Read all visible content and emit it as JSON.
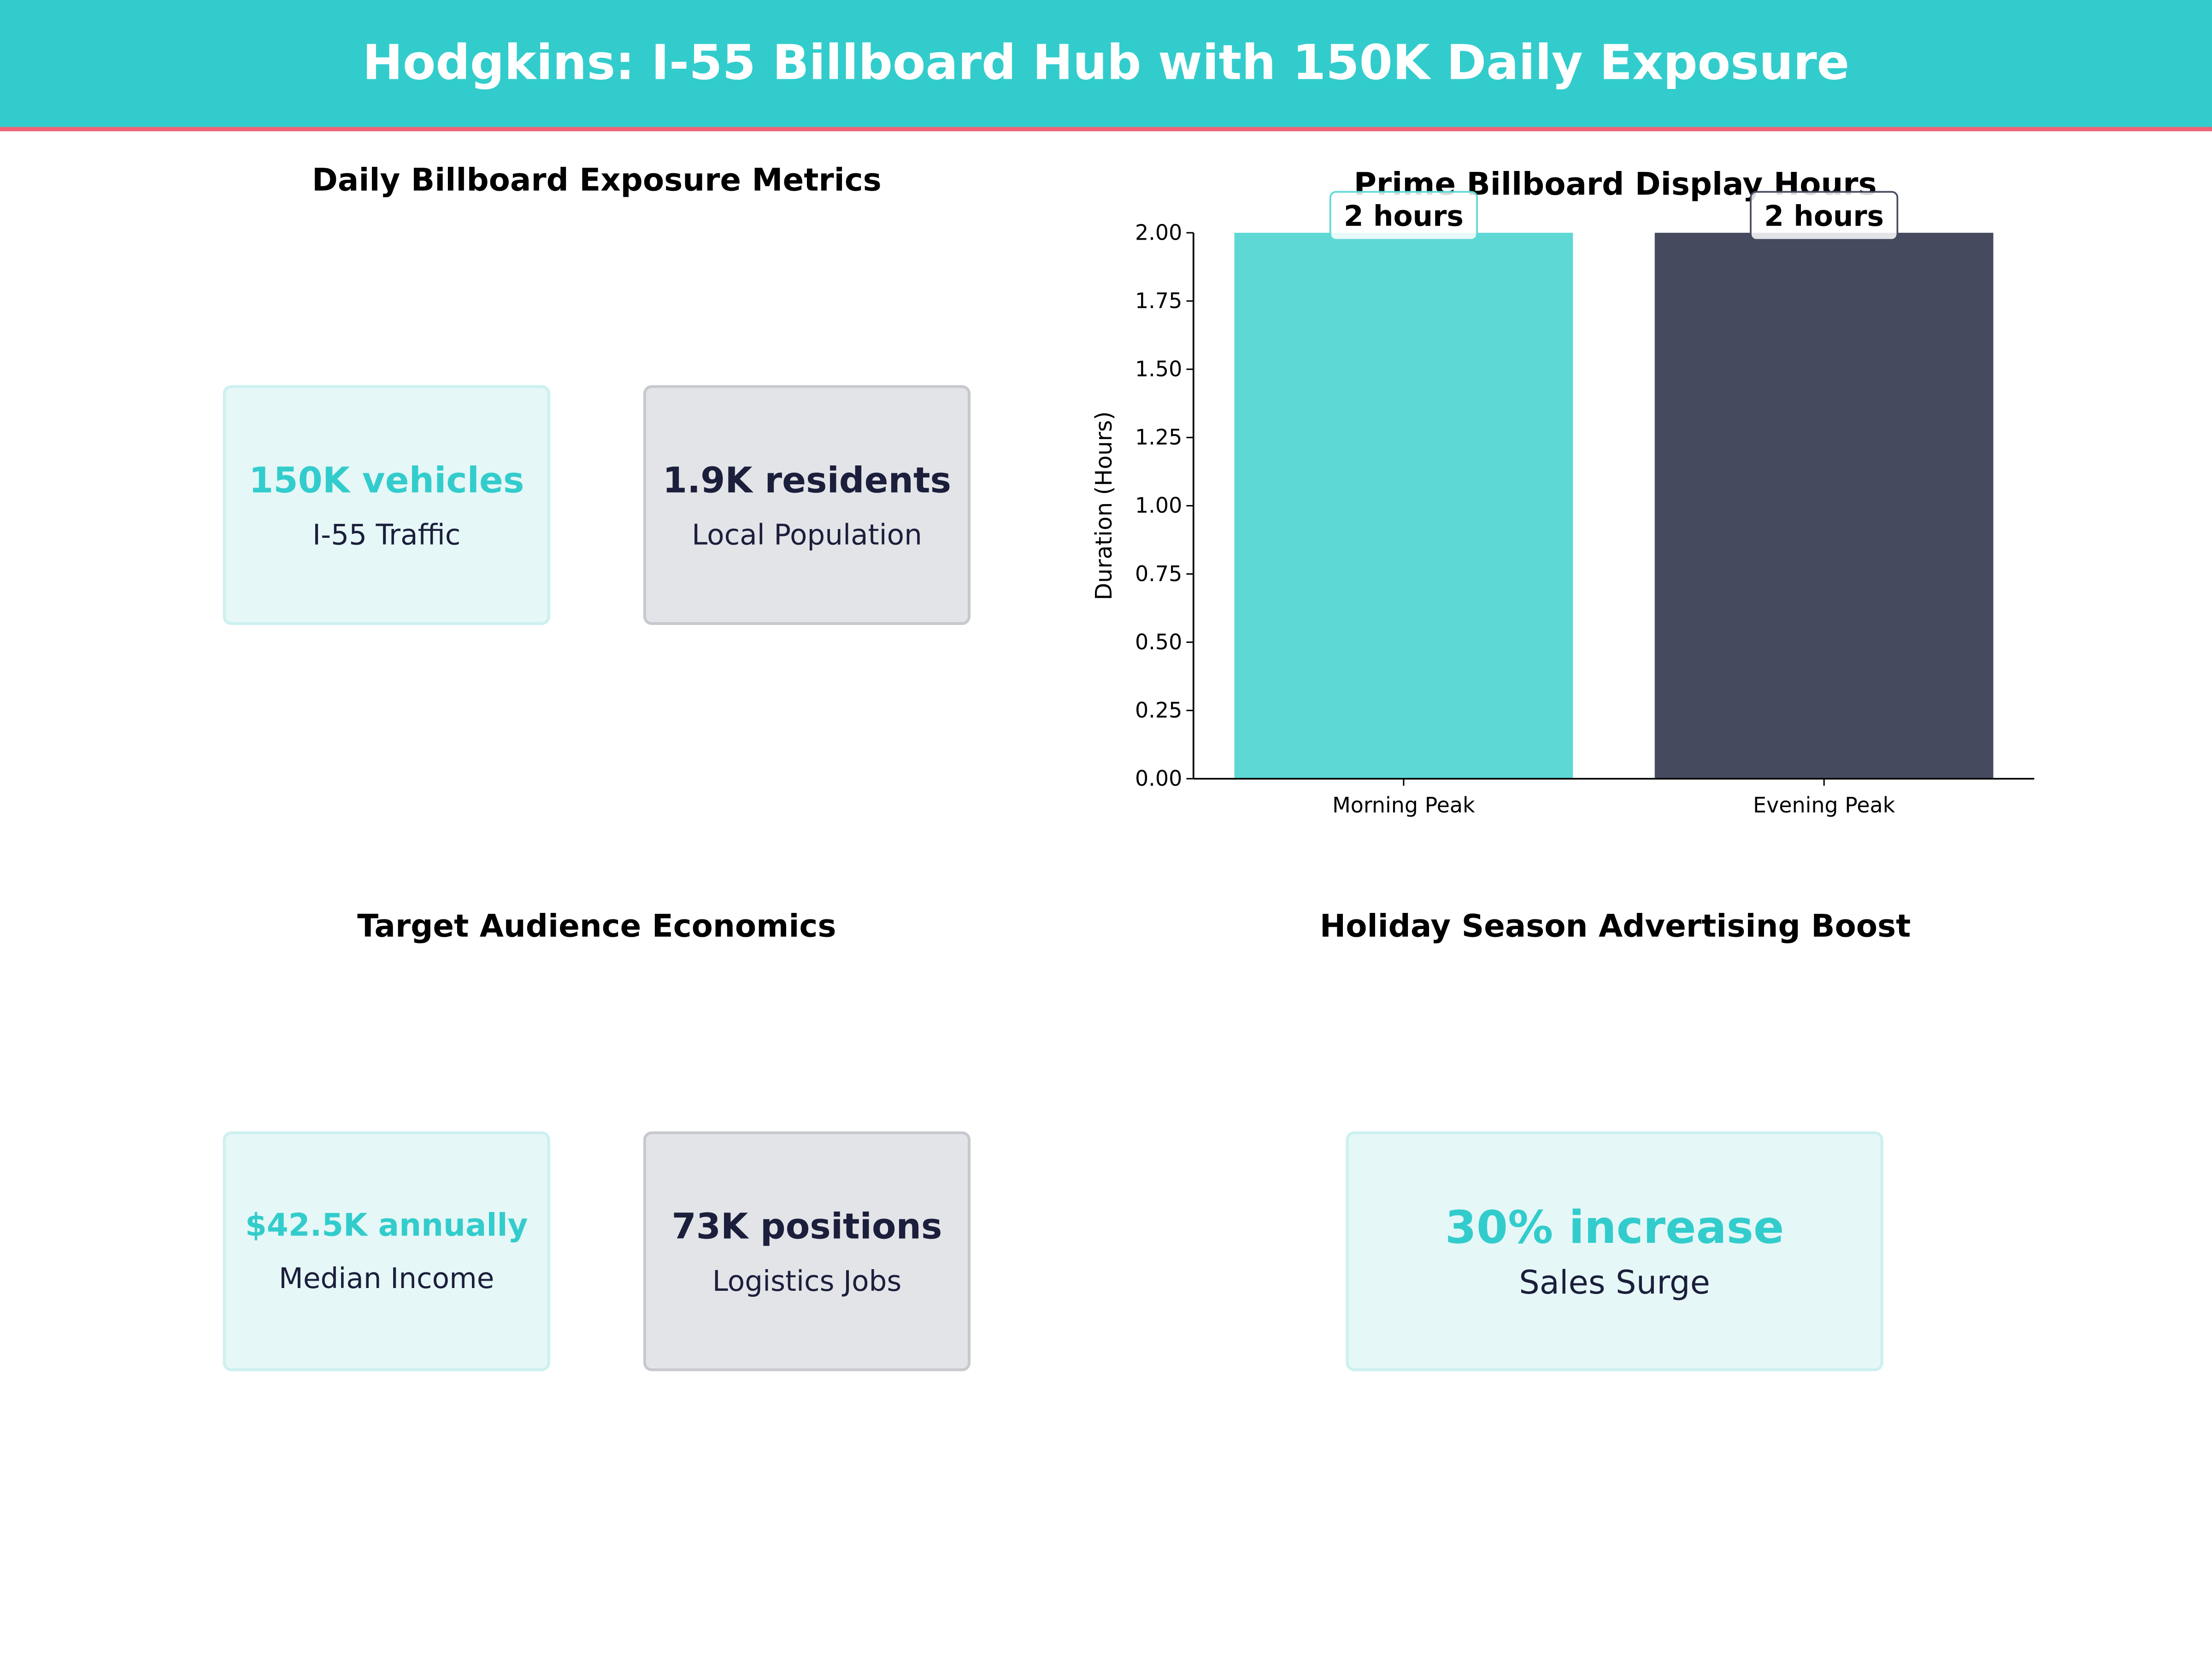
{
  "header": {
    "title": "Hodgkins: I-55 Billboard Hub with 150K Daily Exposure"
  },
  "colors": {
    "teal": "#33CCCC",
    "accent_line": "#F06277",
    "navy": "#454A5F",
    "bar_teal": "#5DD8D5"
  },
  "panels": {
    "exposure": {
      "title": "Daily Billboard Exposure Metrics",
      "cards": [
        {
          "value": "150K vehicles",
          "label": "I-55 Traffic"
        },
        {
          "value": "1.9K residents",
          "label": "Local Population"
        }
      ]
    },
    "economics": {
      "title": "Target Audience Economics",
      "cards": [
        {
          "value": "$42.5K annually",
          "label": "Median Income"
        },
        {
          "value": "73K positions",
          "label": "Logistics Jobs"
        }
      ]
    },
    "holiday": {
      "title": "Holiday Season Advertising Boost",
      "cards": [
        {
          "value": "30% increase",
          "label": "Sales Surge"
        }
      ]
    }
  },
  "chart_data": {
    "type": "bar",
    "title": "Prime Billboard Display Hours",
    "categories": [
      "Morning Peak",
      "Evening Peak"
    ],
    "values": [
      2,
      2
    ],
    "data_labels": [
      "2 hours",
      "2 hours"
    ],
    "colors": [
      "#5DD8D5",
      "#454A5F"
    ],
    "xlabel": "",
    "ylabel": "Duration (Hours)",
    "ylim": [
      0,
      2.0
    ],
    "yticks": [
      "0.00",
      "0.25",
      "0.50",
      "0.75",
      "1.00",
      "1.25",
      "1.50",
      "1.75",
      "2.00"
    ],
    "grid": false
  }
}
